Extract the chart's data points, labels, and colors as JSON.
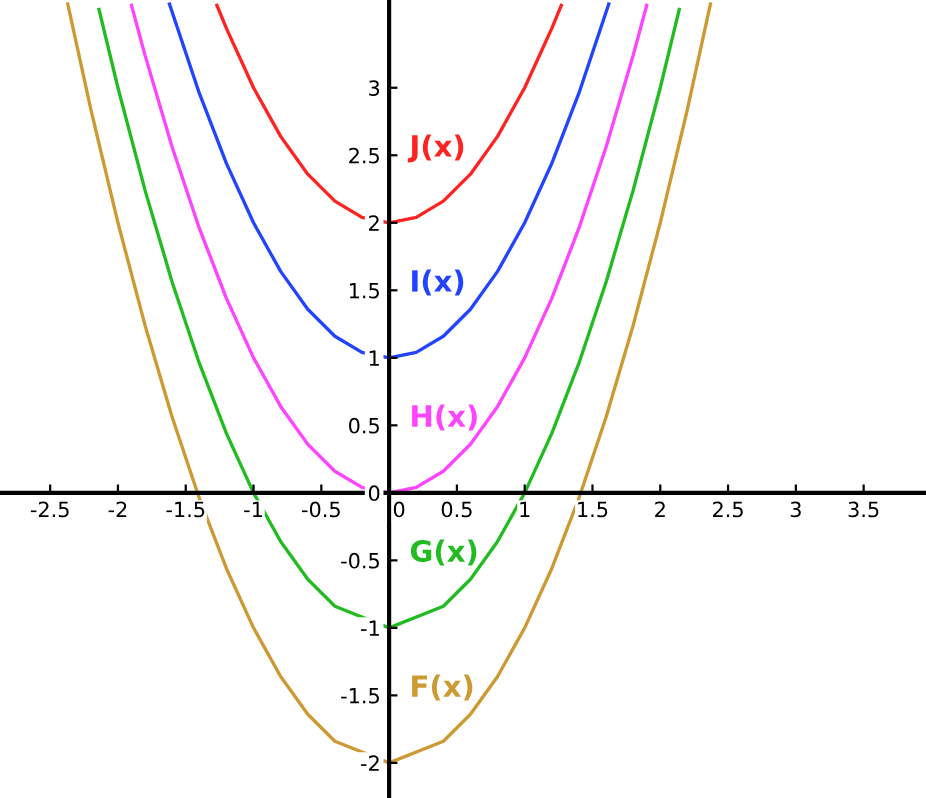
{
  "chart_data": {
    "type": "line",
    "xlim": [
      -2.87,
      3.96
    ],
    "ylim": [
      -2.26,
      3.65
    ],
    "xticks": [
      -2.5,
      -2,
      -1.5,
      -1,
      -0.5,
      0,
      0.5,
      1,
      1.5,
      2,
      2.5,
      3,
      3.5
    ],
    "yticks": [
      -2,
      -1.5,
      -1,
      -0.5,
      0,
      0.5,
      1,
      1.5,
      2,
      2.5,
      3
    ],
    "grid": false,
    "legend": false,
    "marker": "none",
    "line_style": "solid",
    "series": [
      {
        "name": "F(x)",
        "color": "#cc9933",
        "x": [
          -2.37,
          -2.2,
          -2,
          -1.8,
          -1.6,
          -1.4,
          -1.2,
          -1,
          -0.8,
          -0.6,
          -0.4,
          0,
          0.4,
          0.6,
          0.8,
          1,
          1.2,
          1.4,
          1.6,
          1.8,
          2,
          2.2,
          2.37
        ],
        "values": [
          3.62,
          2.84,
          2,
          1.24,
          0.56,
          -0.04,
          -0.56,
          -1,
          -1.36,
          -1.64,
          -1.84,
          -2,
          -1.84,
          -1.64,
          -1.36,
          -1,
          -0.56,
          -0.04,
          0.56,
          1.24,
          2,
          2.84,
          3.62
        ]
      },
      {
        "name": "G(x)",
        "color": "#22bb22",
        "x": [
          -2.14,
          -2,
          -1.8,
          -1.6,
          -1.4,
          -1.2,
          -1,
          -0.8,
          -0.6,
          -0.4,
          0,
          0.4,
          0.6,
          0.8,
          1,
          1.2,
          1.4,
          1.6,
          1.8,
          2,
          2.14
        ],
        "values": [
          3.58,
          3,
          2.24,
          1.56,
          0.96,
          0.44,
          0,
          -0.36,
          -0.64,
          -0.84,
          -1,
          -0.84,
          -0.64,
          -0.36,
          0,
          0.44,
          0.96,
          1.56,
          2.24,
          3,
          3.58
        ]
      },
      {
        "name": "H(x)",
        "color": "#ff44ff",
        "x": [
          -1.9,
          -1.8,
          -1.6,
          -1.4,
          -1.2,
          -1,
          -0.8,
          -0.6,
          -0.4,
          -0.2,
          0,
          0.2,
          0.4,
          0.6,
          0.8,
          1,
          1.2,
          1.4,
          1.6,
          1.8,
          1.9
        ],
        "values": [
          3.61,
          3.24,
          2.56,
          1.96,
          1.44,
          1,
          0.64,
          0.36,
          0.16,
          0.04,
          0,
          0.04,
          0.16,
          0.36,
          0.64,
          1,
          1.44,
          1.96,
          2.56,
          3.24,
          3.61
        ]
      },
      {
        "name": "I(x)",
        "color": "#2244ff",
        "x": [
          -1.62,
          -1.4,
          -1.2,
          -1,
          -0.8,
          -0.6,
          -0.4,
          -0.2,
          0,
          0.2,
          0.4,
          0.6,
          0.8,
          1,
          1.2,
          1.4,
          1.62
        ],
        "values": [
          3.62,
          2.96,
          2.44,
          2,
          1.64,
          1.36,
          1.16,
          1.04,
          1,
          1.04,
          1.16,
          1.36,
          1.64,
          2,
          2.44,
          2.96,
          3.62
        ]
      },
      {
        "name": "J(x)",
        "color": "#ff2222",
        "x": [
          -1.27,
          -1.2,
          -1,
          -0.8,
          -0.6,
          -0.4,
          -0.2,
          0,
          0.2,
          0.4,
          0.6,
          0.8,
          1,
          1.2,
          1.27
        ],
        "values": [
          3.61,
          3.44,
          3,
          2.64,
          2.36,
          2.16,
          2.04,
          2,
          2.04,
          2.16,
          2.36,
          2.64,
          3,
          3.44,
          3.61
        ]
      }
    ]
  }
}
